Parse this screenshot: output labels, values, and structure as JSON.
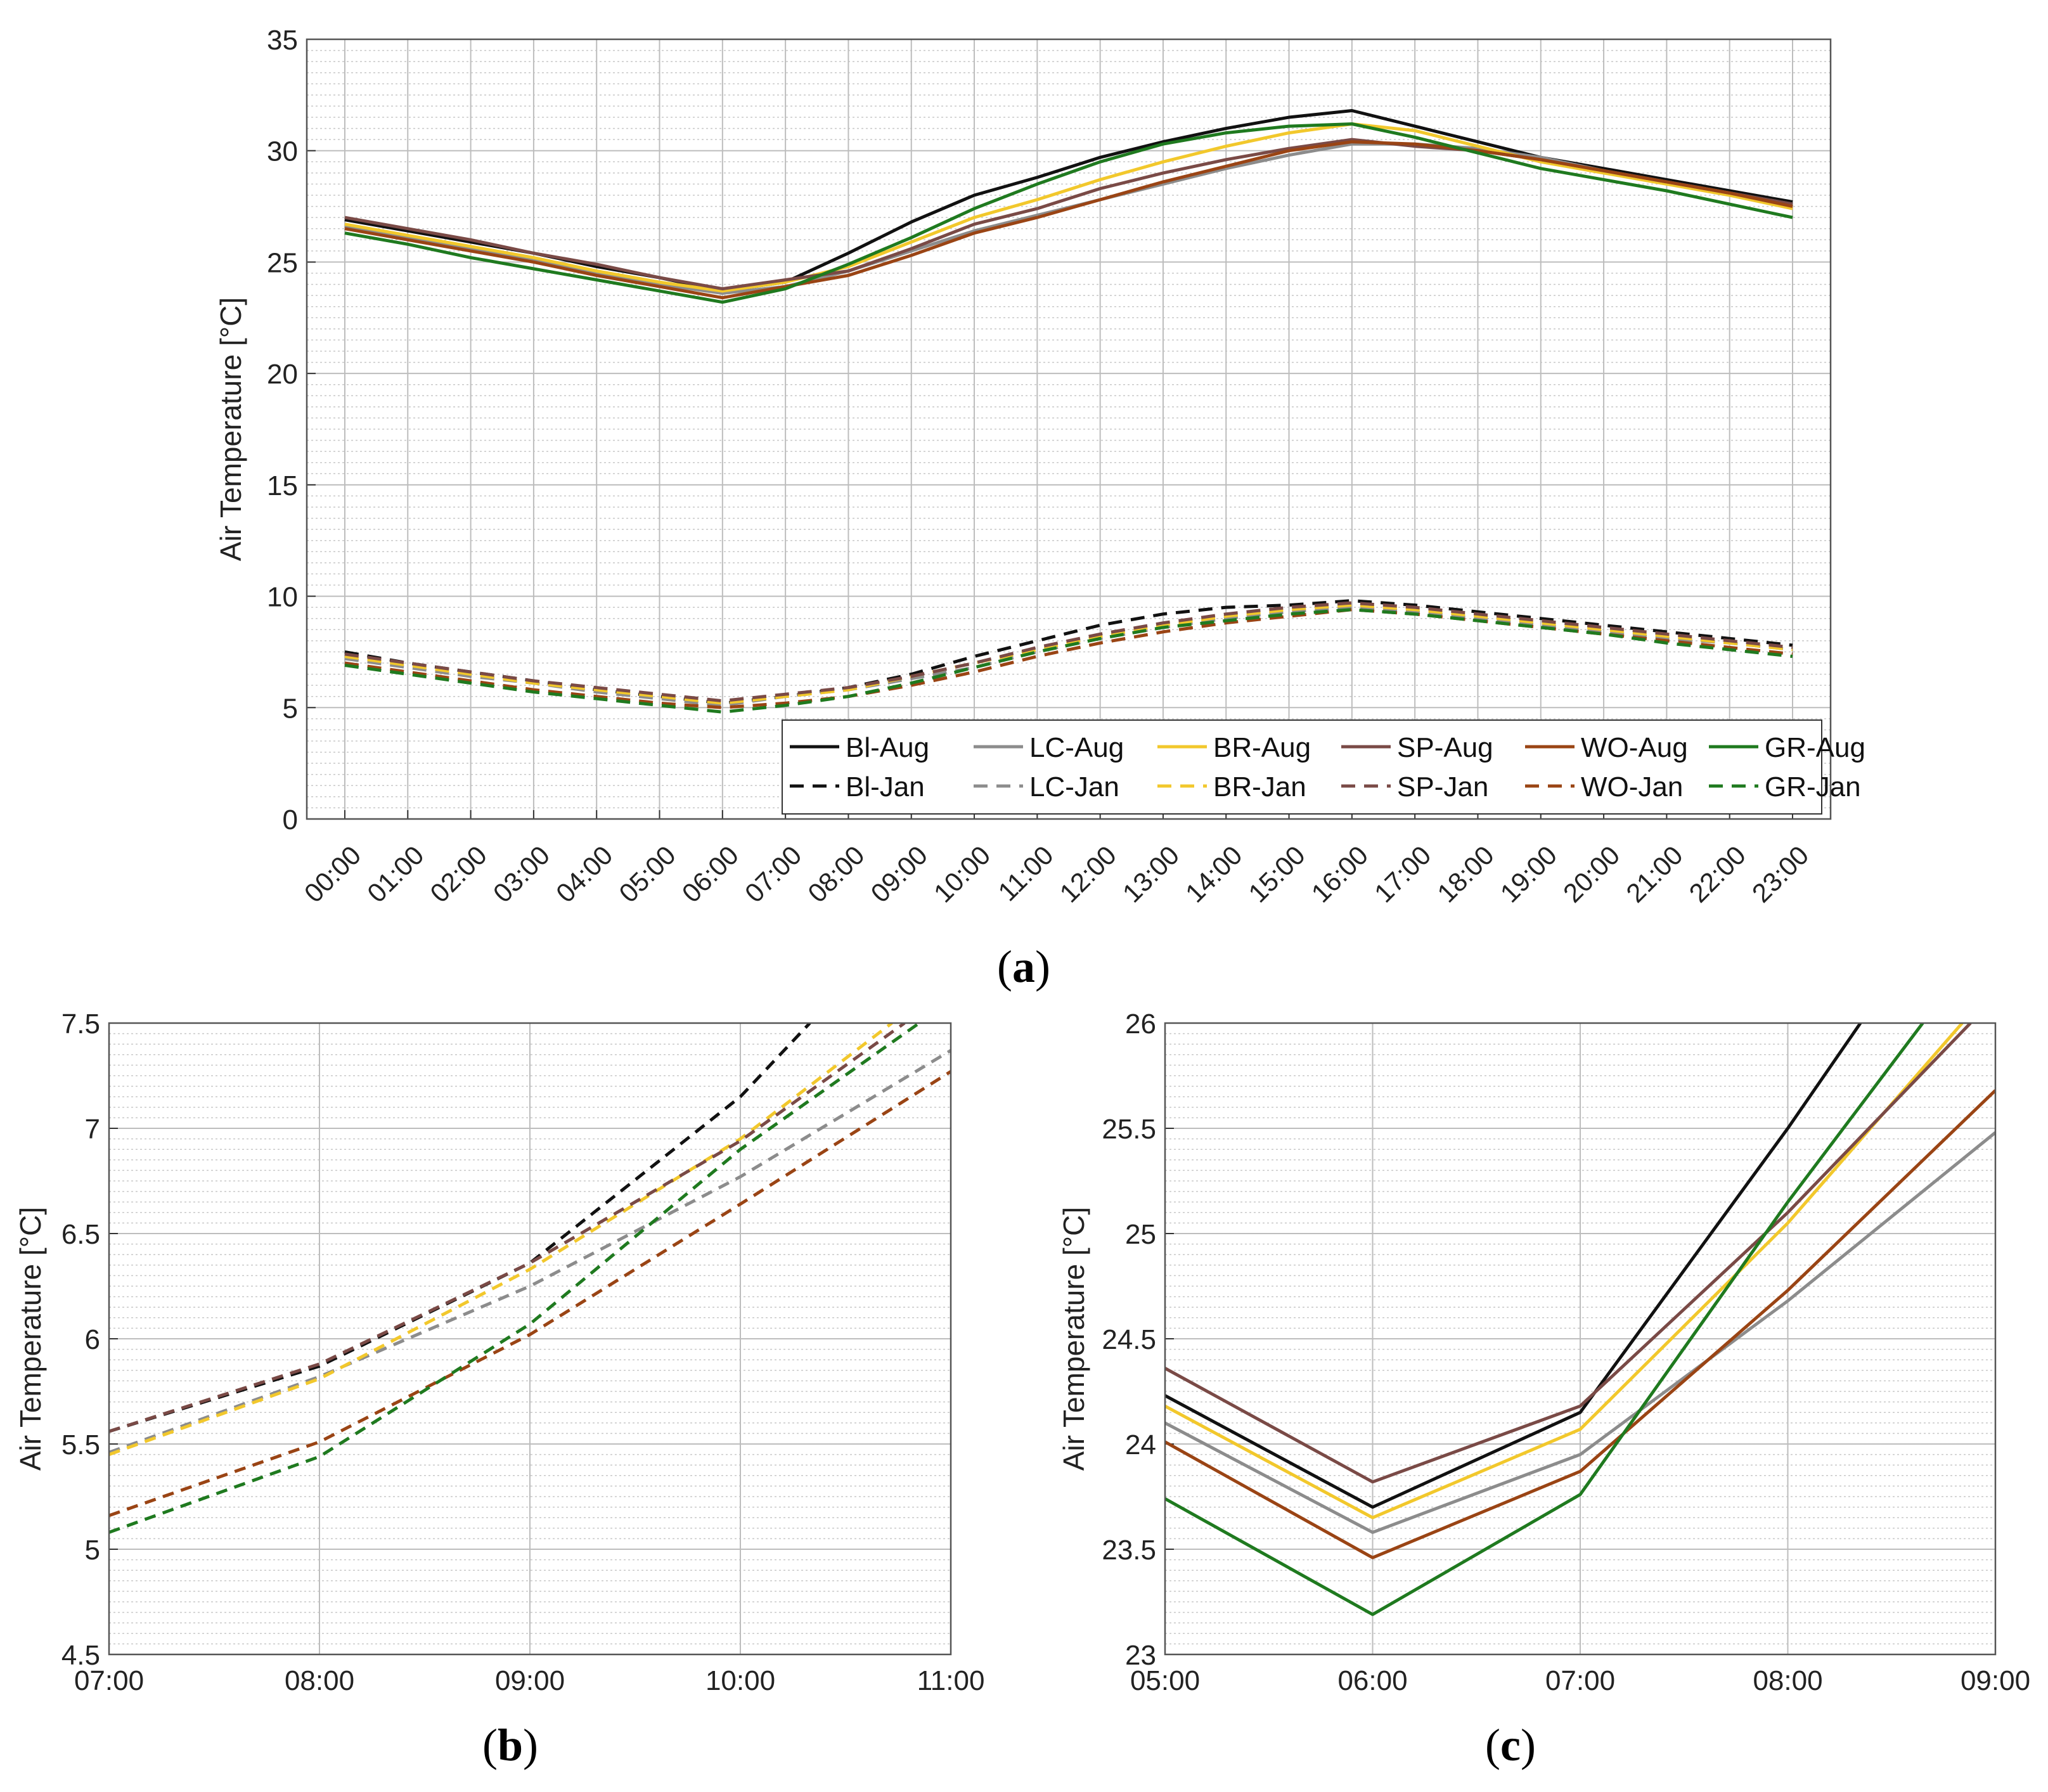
{
  "series_styles": [
    {
      "key": "BI",
      "color": "#111111"
    },
    {
      "key": "LC",
      "color": "#8c8c8c"
    },
    {
      "key": "BR",
      "color": "#f2c82c"
    },
    {
      "key": "SP",
      "color": "#7a4a46"
    },
    {
      "key": "WO",
      "color": "#9a4414"
    },
    {
      "key": "GR",
      "color": "#1f7a1f"
    }
  ],
  "legend": {
    "aug": [
      "Bl-Aug",
      "LC-Aug",
      "BR-Aug",
      "SP-Aug",
      "WO-Aug",
      "GR-Aug"
    ],
    "jan": [
      "Bl-Jan",
      "LC-Jan",
      "BR-Jan",
      "SP-Jan",
      "WO-Jan",
      "GR-Jan"
    ]
  },
  "captions": {
    "a": "a",
    "b": "b",
    "c": "c"
  },
  "chart_data": [
    {
      "id": "a",
      "type": "line",
      "ylabel": "Air Temperature [°C]",
      "ylim": [
        0,
        35
      ],
      "yticks": [
        "0",
        "5",
        "10",
        "15",
        "20",
        "25",
        "30",
        "35"
      ],
      "x": [
        "00:00",
        "01:00",
        "02:00",
        "03:00",
        "04:00",
        "05:00",
        "06:00",
        "07:00",
        "08:00",
        "09:00",
        "10:00",
        "11:00",
        "12:00",
        "13:00",
        "14:00",
        "15:00",
        "16:00",
        "17:00",
        "18:00",
        "19:00",
        "20:00",
        "21:00",
        "22:00",
        "23:00"
      ],
      "grid": true,
      "legend_position": "bottom-right",
      "series": [
        {
          "name": "Bl-Aug",
          "style": 0,
          "dash": false,
          "values": [
            26.9,
            26.4,
            25.9,
            25.4,
            24.8,
            24.3,
            23.7,
            24.1,
            25.4,
            26.8,
            28.0,
            28.8,
            29.7,
            30.4,
            31.0,
            31.5,
            31.8,
            31.1,
            30.4,
            29.7,
            29.2,
            28.7,
            28.2,
            27.7
          ]
        },
        {
          "name": "LC-Aug",
          "style": 1,
          "dash": false,
          "values": [
            26.6,
            26.1,
            25.6,
            25.1,
            24.5,
            24.0,
            23.6,
            23.9,
            24.6,
            25.5,
            26.4,
            27.1,
            27.8,
            28.5,
            29.2,
            29.8,
            30.3,
            30.3,
            30.1,
            29.7,
            29.1,
            28.6,
            28.1,
            27.6
          ]
        },
        {
          "name": "BR-Aug",
          "style": 2,
          "dash": false,
          "values": [
            26.7,
            26.2,
            25.7,
            25.2,
            24.6,
            24.1,
            23.7,
            24.1,
            24.8,
            25.9,
            27.0,
            27.8,
            28.7,
            29.5,
            30.2,
            30.8,
            31.2,
            30.9,
            30.2,
            29.5,
            29.0,
            28.5,
            28.0,
            27.4
          ]
        },
        {
          "name": "SP-Aug",
          "style": 3,
          "dash": false,
          "values": [
            27.0,
            26.5,
            26.0,
            25.4,
            24.9,
            24.3,
            23.8,
            24.2,
            24.6,
            25.6,
            26.7,
            27.4,
            28.3,
            29.0,
            29.6,
            30.1,
            30.5,
            30.2,
            30.0,
            29.6,
            29.1,
            28.6,
            28.1,
            27.6
          ]
        },
        {
          "name": "WO-Aug",
          "style": 4,
          "dash": false,
          "values": [
            26.5,
            26.0,
            25.5,
            25.0,
            24.4,
            23.9,
            23.4,
            23.9,
            24.4,
            25.3,
            26.3,
            27.0,
            27.8,
            28.6,
            29.3,
            30.0,
            30.4,
            30.3,
            30.0,
            29.6,
            29.1,
            28.6,
            28.1,
            27.5
          ]
        },
        {
          "name": "GR-Aug",
          "style": 5,
          "dash": false,
          "values": [
            26.3,
            25.8,
            25.2,
            24.7,
            24.2,
            23.7,
            23.2,
            23.8,
            24.9,
            26.1,
            27.4,
            28.5,
            29.5,
            30.3,
            30.8,
            31.1,
            31.2,
            30.6,
            29.9,
            29.2,
            28.7,
            28.2,
            27.6,
            27.0
          ]
        },
        {
          "name": "Bl-Jan",
          "style": 0,
          "dash": true,
          "values": [
            7.5,
            7.0,
            6.6,
            6.2,
            5.8,
            5.5,
            5.2,
            5.5,
            5.9,
            6.5,
            7.3,
            8.0,
            8.7,
            9.2,
            9.5,
            9.6,
            9.8,
            9.6,
            9.3,
            9.0,
            8.7,
            8.4,
            8.1,
            7.8
          ]
        },
        {
          "name": "LC-Jan",
          "style": 1,
          "dash": true,
          "values": [
            7.2,
            6.8,
            6.4,
            6.1,
            5.7,
            5.4,
            5.1,
            5.5,
            5.8,
            6.3,
            6.8,
            7.5,
            8.1,
            8.6,
            9.0,
            9.3,
            9.5,
            9.3,
            9.0,
            8.7,
            8.4,
            8.1,
            7.9,
            7.6
          ]
        },
        {
          "name": "BR-Jan",
          "style": 2,
          "dash": true,
          "values": [
            7.3,
            6.9,
            6.5,
            6.1,
            5.8,
            5.5,
            5.2,
            5.5,
            5.8,
            6.4,
            7.0,
            7.6,
            8.2,
            8.7,
            9.1,
            9.4,
            9.6,
            9.4,
            9.1,
            8.8,
            8.5,
            8.2,
            7.9,
            7.6
          ]
        },
        {
          "name": "SP-Jan",
          "style": 3,
          "dash": true,
          "values": [
            7.4,
            7.0,
            6.6,
            6.2,
            5.9,
            5.6,
            5.3,
            5.6,
            5.9,
            6.4,
            7.0,
            7.7,
            8.3,
            8.8,
            9.2,
            9.5,
            9.7,
            9.5,
            9.2,
            8.9,
            8.6,
            8.3,
            8.0,
            7.7
          ]
        },
        {
          "name": "WO-Jan",
          "style": 4,
          "dash": true,
          "values": [
            7.0,
            6.6,
            6.2,
            5.8,
            5.5,
            5.2,
            5.0,
            5.2,
            5.5,
            6.0,
            6.6,
            7.3,
            7.9,
            8.4,
            8.8,
            9.1,
            9.4,
            9.2,
            8.9,
            8.6,
            8.3,
            8.0,
            7.7,
            7.4
          ]
        },
        {
          "name": "GR-Jan",
          "style": 5,
          "dash": true,
          "values": [
            6.9,
            6.5,
            6.1,
            5.7,
            5.4,
            5.1,
            4.8,
            5.1,
            5.5,
            6.1,
            6.8,
            7.5,
            8.1,
            8.6,
            8.9,
            9.2,
            9.4,
            9.2,
            8.9,
            8.6,
            8.3,
            7.9,
            7.6,
            7.3
          ]
        }
      ]
    },
    {
      "id": "b",
      "type": "line",
      "ylabel": "Air Temperature [°C]",
      "ylim": [
        4.5,
        7.5
      ],
      "yticks": [
        "4.5",
        "5",
        "5.5",
        "6",
        "6.5",
        "7",
        "7.5"
      ],
      "xlim": [
        7,
        11
      ],
      "xticks": [
        "07:00",
        "08:00",
        "09:00",
        "10:00",
        "11:00"
      ],
      "grid": true,
      "series": [
        {
          "name": "Bl-Jan",
          "style": 0,
          "dash": true,
          "points": [
            [
              7,
              5.56
            ],
            [
              8,
              5.87
            ],
            [
              9,
              6.36
            ],
            [
              10,
              7.15
            ],
            [
              10.33,
              7.5
            ]
          ]
        },
        {
          "name": "LC-Jan",
          "style": 1,
          "dash": true,
          "points": [
            [
              7,
              5.46
            ],
            [
              8,
              5.82
            ],
            [
              9,
              6.25
            ],
            [
              10,
              6.77
            ],
            [
              11,
              7.37
            ]
          ]
        },
        {
          "name": "BR-Jan",
          "style": 2,
          "dash": true,
          "points": [
            [
              7,
              5.45
            ],
            [
              8,
              5.81
            ],
            [
              9,
              6.33
            ],
            [
              10,
              6.95
            ],
            [
              10.72,
              7.5
            ]
          ]
        },
        {
          "name": "SP-Jan",
          "style": 3,
          "dash": true,
          "points": [
            [
              7,
              5.56
            ],
            [
              8,
              5.88
            ],
            [
              9,
              6.36
            ],
            [
              10,
              6.94
            ],
            [
              10.78,
              7.5
            ]
          ]
        },
        {
          "name": "WO-Jan",
          "style": 4,
          "dash": true,
          "points": [
            [
              7,
              5.16
            ],
            [
              8,
              5.51
            ],
            [
              9,
              6.02
            ],
            [
              10,
              6.64
            ],
            [
              11,
              7.27
            ]
          ]
        },
        {
          "name": "GR-Jan",
          "style": 5,
          "dash": true,
          "points": [
            [
              7,
              5.08
            ],
            [
              8,
              5.44
            ],
            [
              9,
              6.07
            ],
            [
              10,
              6.9
            ],
            [
              10.85,
              7.5
            ]
          ]
        }
      ]
    },
    {
      "id": "c",
      "type": "line",
      "ylabel": "Air Temperature [°C]",
      "ylim": [
        23,
        26
      ],
      "yticks": [
        "23",
        "23.5",
        "24",
        "24.5",
        "25",
        "25.5",
        "26"
      ],
      "xlim": [
        5,
        9
      ],
      "xticks": [
        "05:00",
        "06:00",
        "07:00",
        "08:00",
        "09:00"
      ],
      "grid": true,
      "series": [
        {
          "name": "Bl-Aug",
          "style": 0,
          "dash": false,
          "points": [
            [
              5,
              24.23
            ],
            [
              6,
              23.7
            ],
            [
              7,
              24.15
            ],
            [
              8,
              25.5
            ],
            [
              8.35,
              26
            ]
          ]
        },
        {
          "name": "LC-Aug",
          "style": 1,
          "dash": false,
          "points": [
            [
              5,
              24.1
            ],
            [
              6,
              23.58
            ],
            [
              7,
              23.95
            ],
            [
              8,
              24.68
            ],
            [
              9,
              25.48
            ]
          ]
        },
        {
          "name": "BR-Aug",
          "style": 2,
          "dash": false,
          "points": [
            [
              5,
              24.18
            ],
            [
              6,
              23.65
            ],
            [
              7,
              24.07
            ],
            [
              8,
              25.05
            ],
            [
              8.84,
              26
            ]
          ]
        },
        {
          "name": "SP-Aug",
          "style": 3,
          "dash": false,
          "points": [
            [
              5,
              24.36
            ],
            [
              6,
              23.82
            ],
            [
              7,
              24.18
            ],
            [
              8,
              25.1
            ],
            [
              8.88,
              26
            ]
          ]
        },
        {
          "name": "WO-Aug",
          "style": 4,
          "dash": false,
          "points": [
            [
              5,
              24.01
            ],
            [
              6,
              23.46
            ],
            [
              7,
              23.87
            ],
            [
              8,
              24.73
            ],
            [
              9,
              25.68
            ]
          ]
        },
        {
          "name": "GR-Aug",
          "style": 5,
          "dash": false,
          "points": [
            [
              5,
              23.74
            ],
            [
              6,
              23.19
            ],
            [
              7,
              23.76
            ],
            [
              8,
              25.15
            ],
            [
              8.65,
              26
            ]
          ]
        }
      ]
    }
  ]
}
